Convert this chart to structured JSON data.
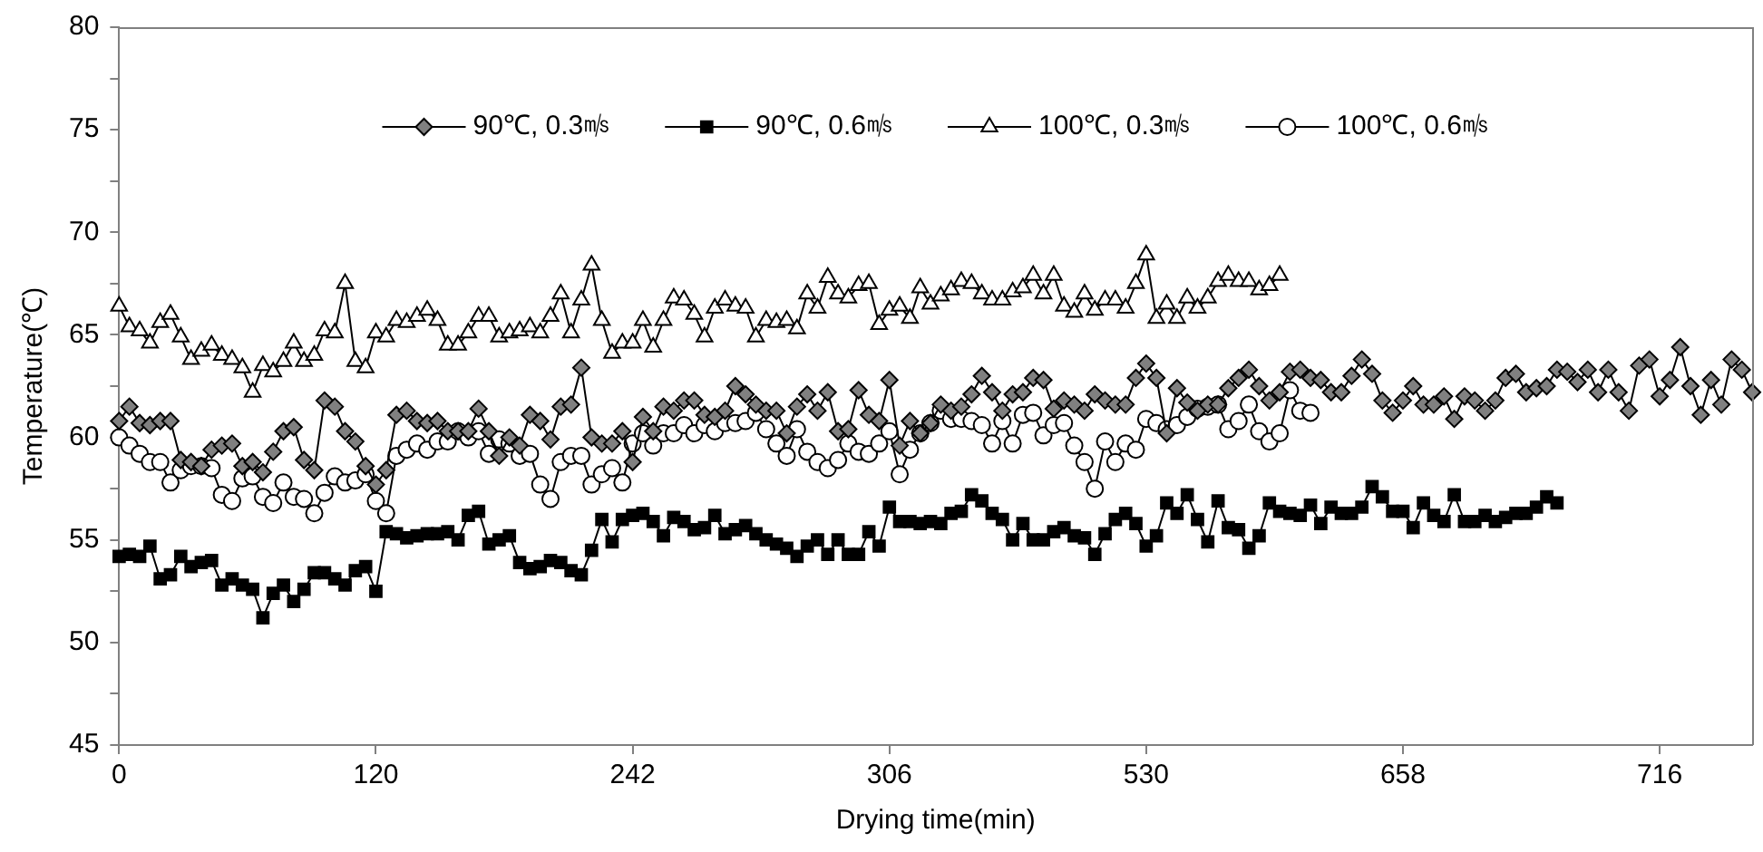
{
  "chart_data": {
    "type": "line",
    "xlabel": "Drying time(min)",
    "ylabel": "Temperature(℃)",
    "ylim": [
      45,
      80
    ],
    "yticks": [
      45,
      {
        "value": 47.5,
        "label": null
      },
      50,
      {
        "value": 52.5,
        "label": null
      },
      55,
      {
        "value": 57.5,
        "label": null
      },
      60,
      {
        "value": 62.5,
        "label": null
      },
      65,
      {
        "value": 67.5,
        "label": null
      },
      70,
      {
        "value": 72.5,
        "label": null
      },
      75,
      {
        "value": 77.5,
        "label": null
      },
      80
    ],
    "legend": "top",
    "line_style": "solid",
    "categories": [
      "0",
      null,
      null,
      null,
      null,
      null,
      null,
      null,
      null,
      null,
      null,
      null,
      null,
      null,
      null,
      null,
      null,
      null,
      null,
      null,
      null,
      null,
      null,
      null,
      null,
      "120",
      null,
      null,
      null,
      null,
      null,
      null,
      null,
      null,
      null,
      null,
      null,
      null,
      null,
      null,
      null,
      null,
      null,
      null,
      null,
      null,
      null,
      null,
      null,
      null,
      "242",
      null,
      null,
      null,
      null,
      null,
      null,
      null,
      null,
      null,
      null,
      null,
      null,
      null,
      null,
      null,
      null,
      null,
      null,
      null,
      null,
      null,
      null,
      null,
      null,
      "306",
      null,
      null,
      null,
      null,
      null,
      null,
      null,
      null,
      null,
      null,
      null,
      null,
      null,
      null,
      null,
      null,
      null,
      null,
      null,
      null,
      null,
      null,
      null,
      null,
      "530",
      null,
      null,
      null,
      null,
      null,
      null,
      null,
      null,
      null,
      null,
      null,
      null,
      null,
      null,
      null,
      null,
      null,
      null,
      null,
      null,
      null,
      null,
      null,
      null,
      "658",
      null,
      null,
      null,
      null,
      null,
      null,
      null,
      null,
      null,
      null,
      null,
      null,
      null,
      null,
      null,
      null,
      null,
      null,
      null,
      null,
      null,
      null,
      null,
      null,
      "716",
      null,
      null,
      null,
      null,
      null,
      null,
      null,
      null,
      null
    ],
    "series": [
      {
        "name": "90℃, 0.3㎧",
        "color": "#808080",
        "marker": "diamond",
        "values": [
          60.8,
          61.5,
          60.7,
          60.6,
          60.8,
          60.8,
          58.9,
          58.8,
          58.6,
          59.4,
          59.6,
          59.7,
          58.6,
          58.8,
          58.3,
          59.3,
          60.3,
          60.5,
          58.9,
          58.4,
          61.8,
          61.5,
          60.3,
          59.8,
          58.6,
          57.7,
          58.4,
          61.1,
          61.3,
          60.8,
          60.7,
          60.8,
          60.3,
          60.3,
          60.3,
          61.4,
          60.3,
          59.1,
          60.0,
          59.6,
          61.1,
          60.8,
          59.9,
          61.5,
          61.6,
          63.4,
          60.0,
          59.7,
          59.7,
          60.3,
          58.8,
          61.0,
          60.3,
          61.5,
          61.3,
          61.8,
          61.8,
          61.1,
          61.0,
          61.3,
          62.5,
          62.1,
          61.6,
          61.3,
          61.3,
          60.2,
          61.5,
          62.1,
          61.3,
          62.2,
          60.3,
          60.4,
          62.3,
          61.1,
          60.8,
          62.8,
          59.6,
          60.8,
          60.2,
          60.7,
          61.6,
          61.3,
          61.5,
          62.1,
          63.0,
          62.2,
          61.3,
          62.1,
          62.2,
          62.9,
          62.8,
          61.4,
          61.8,
          61.6,
          61.3,
          62.1,
          61.8,
          61.6,
          61.6,
          62.9,
          63.6,
          62.9,
          60.2,
          62.4,
          61.7,
          61.3,
          61.6,
          61.6,
          62.4,
          62.9,
          63.3,
          62.5,
          61.8,
          62.2,
          63.2,
          63.3,
          62.9,
          62.8,
          62.2,
          62.2,
          63.0,
          63.8,
          63.1,
          61.8,
          61.2,
          61.8,
          62.5,
          61.6,
          61.6,
          62.0,
          60.9,
          62.0,
          61.8,
          61.3,
          61.8,
          62.9,
          63.1,
          62.2,
          62.4,
          62.5,
          63.3,
          63.2,
          62.7,
          63.3,
          62.2,
          63.3,
          62.2,
          61.3,
          63.5,
          63.8,
          62.0,
          62.8,
          64.4,
          62.5,
          61.1,
          62.8,
          61.6,
          63.8,
          63.3,
          62.2
        ]
      },
      {
        "name": "90℃, 0.6㎧",
        "color": "#000000",
        "marker": "square",
        "values": [
          54.2,
          54.3,
          54.2,
          54.7,
          53.1,
          53.3,
          54.2,
          53.7,
          53.9,
          54.0,
          52.8,
          53.1,
          52.8,
          52.6,
          51.2,
          52.4,
          52.8,
          52.0,
          52.6,
          53.4,
          53.4,
          53.1,
          52.8,
          53.5,
          53.7,
          52.5,
          55.4,
          55.3,
          55.1,
          55.2,
          55.3,
          55.3,
          55.4,
          55.0,
          56.2,
          56.4,
          54.8,
          55.0,
          55.2,
          53.9,
          53.6,
          53.7,
          54.0,
          53.9,
          53.5,
          53.3,
          54.5,
          56.0,
          54.9,
          56.0,
          56.2,
          56.3,
          55.9,
          55.2,
          56.1,
          55.9,
          55.5,
          55.6,
          56.2,
          55.3,
          55.5,
          55.7,
          55.3,
          55.0,
          54.8,
          54.6,
          54.2,
          54.7,
          55.0,
          54.3,
          55.0,
          54.3,
          54.3,
          55.4,
          54.7,
          56.6,
          55.9,
          55.9,
          55.8,
          55.9,
          55.8,
          56.3,
          56.4,
          57.2,
          56.9,
          56.3,
          56.0,
          55.0,
          55.8,
          55.0,
          55.0,
          55.4,
          55.6,
          55.2,
          55.1,
          54.3,
          55.3,
          56.0,
          56.3,
          55.8,
          54.7,
          55.2,
          56.8,
          56.3,
          57.2,
          56.0,
          54.9,
          56.9,
          55.6,
          55.5,
          54.6,
          55.2,
          56.8,
          56.4,
          56.3,
          56.2,
          56.7,
          55.8,
          56.6,
          56.3,
          56.3,
          56.6,
          57.6,
          57.1,
          56.4,
          56.4,
          55.6,
          56.8,
          56.2,
          55.9,
          57.2,
          55.9,
          55.9,
          56.2,
          55.9,
          56.1,
          56.3,
          56.3,
          56.6,
          57.1,
          56.8,
          null,
          null,
          null,
          null,
          null,
          null,
          null,
          null,
          null,
          null,
          null,
          null,
          null,
          null,
          null,
          null,
          null,
          null,
          null
        ]
      },
      {
        "name": "100℃, 0.3㎧",
        "color": "#ffffff",
        "marker": "triangle",
        "values": [
          66.4,
          65.4,
          65.2,
          64.6,
          65.6,
          66.0,
          64.9,
          63.8,
          64.2,
          64.5,
          64.0,
          63.8,
          63.4,
          62.2,
          63.5,
          63.2,
          63.7,
          64.6,
          63.7,
          64.0,
          65.2,
          65.1,
          67.5,
          63.7,
          63.4,
          65.1,
          64.9,
          65.7,
          65.6,
          65.9,
          66.2,
          65.7,
          64.5,
          64.5,
          65.1,
          65.9,
          65.9,
          64.9,
          65.1,
          65.2,
          65.4,
          65.1,
          65.9,
          67.0,
          65.1,
          66.7,
          68.4,
          65.7,
          64.1,
          64.6,
          64.6,
          65.7,
          64.4,
          65.7,
          66.8,
          66.7,
          66.0,
          64.9,
          66.3,
          66.7,
          66.4,
          66.3,
          64.9,
          65.7,
          65.6,
          65.7,
          65.3,
          67.0,
          66.3,
          67.8,
          67.0,
          66.8,
          67.4,
          67.5,
          65.5,
          66.2,
          66.4,
          65.8,
          67.3,
          66.5,
          66.9,
          67.2,
          67.6,
          67.5,
          67.0,
          66.7,
          66.7,
          67.1,
          67.3,
          67.9,
          67.0,
          67.9,
          66.4,
          66.1,
          67.0,
          66.2,
          66.7,
          66.7,
          66.3,
          67.5,
          68.9,
          65.8,
          66.5,
          65.8,
          66.8,
          66.3,
          66.8,
          67.6,
          67.9,
          67.6,
          67.6,
          67.2,
          67.4,
          67.9,
          null,
          null,
          null,
          null,
          null,
          null,
          null,
          null,
          null,
          null,
          null,
          null,
          null,
          null,
          null,
          null,
          null,
          null,
          null,
          null,
          null,
          null,
          null,
          null,
          null,
          null,
          null,
          null,
          null,
          null,
          null,
          null,
          null,
          null,
          null,
          null,
          null,
          null,
          null,
          null,
          null,
          null,
          null,
          null,
          null,
          null
        ]
      },
      {
        "name": "100℃, 0.6㎧",
        "color": "#ffffff",
        "marker": "circle",
        "values": [
          60.0,
          59.6,
          59.2,
          58.8,
          58.8,
          57.8,
          58.4,
          58.6,
          58.6,
          58.5,
          57.2,
          56.9,
          58.0,
          58.1,
          57.1,
          56.8,
          57.8,
          57.1,
          57.0,
          56.3,
          57.3,
          58.1,
          57.8,
          57.9,
          58.2,
          56.9,
          56.3,
          59.1,
          59.4,
          59.7,
          59.4,
          59.8,
          59.8,
          60.3,
          60.0,
          60.3,
          59.2,
          59.9,
          59.7,
          59.1,
          59.2,
          57.7,
          57.0,
          58.8,
          59.1,
          59.1,
          57.7,
          58.2,
          58.5,
          57.8,
          59.7,
          60.2,
          59.6,
          60.2,
          60.2,
          60.6,
          60.2,
          60.6,
          60.3,
          60.7,
          60.7,
          60.8,
          61.2,
          60.4,
          59.7,
          59.1,
          60.4,
          59.3,
          58.8,
          58.5,
          58.9,
          59.7,
          59.3,
          59.2,
          59.7,
          60.3,
          58.2,
          59.4,
          60.2,
          60.7,
          61.3,
          60.9,
          60.9,
          60.8,
          60.6,
          59.7,
          60.8,
          59.7,
          61.1,
          61.2,
          60.1,
          60.6,
          60.7,
          59.6,
          58.8,
          57.5,
          59.8,
          58.8,
          59.7,
          59.4,
          60.9,
          60.7,
          60.4,
          60.6,
          61.0,
          61.4,
          61.5,
          61.6,
          60.4,
          60.8,
          61.6,
          60.3,
          59.8,
          60.2,
          62.3,
          61.3,
          61.2,
          null,
          null,
          null,
          null,
          null,
          null,
          null,
          null,
          null,
          null,
          null,
          null,
          null,
          null,
          null,
          null,
          null,
          null,
          null,
          null,
          null,
          null,
          null,
          null,
          null,
          null,
          null,
          null,
          null,
          null,
          null,
          null,
          null,
          null,
          null,
          null,
          null,
          null,
          null,
          null,
          null,
          null,
          null
        ]
      }
    ]
  }
}
